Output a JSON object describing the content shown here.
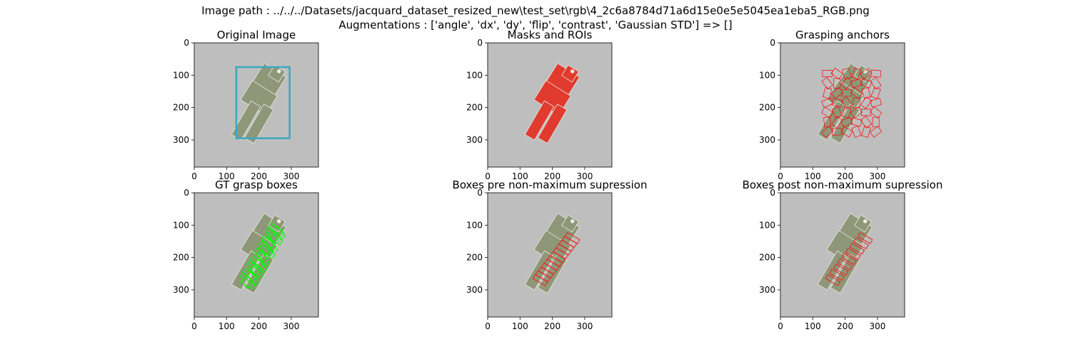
{
  "figure": {
    "line1": "Image path : ../../../Datasets/jacquard_dataset_resized_new\\test_set\\rgb\\4_2c6a8784d71a6d15e0e5e5045ea1eba5_RGB.png",
    "line2": "Augmentations : ['angle', 'dx', 'dy', 'flip', 'contrast', 'Gaussian STD'] => []"
  },
  "axes_ticks": {
    "y": [
      "0",
      "100",
      "200",
      "300"
    ],
    "x": [
      "0",
      "100",
      "200",
      "300"
    ],
    "extent": [
      0,
      384
    ]
  },
  "colors": {
    "background": "#bebebe",
    "object_body": "#8f9779",
    "roi_box": "#3aa8bf",
    "mask": "#e03b2e",
    "anchor": "#ff0000",
    "gt_box": "#00ff00",
    "pred_box": "#e8231f"
  },
  "panels": [
    {
      "id": "original",
      "title": "Original Image",
      "icon": "roi-box"
    },
    {
      "id": "masks",
      "title": "Masks and ROIs",
      "icon": "mask-overlay"
    },
    {
      "id": "anchors",
      "title": "Grasping anchors",
      "icon": "anchor-grid"
    },
    {
      "id": "gt",
      "title": "GT grasp boxes",
      "icon": "gt-boxes"
    },
    {
      "id": "pre_nms",
      "title": "Boxes pre non-maximum supression",
      "icon": "pre-nms-boxes"
    },
    {
      "id": "post_nms",
      "title": "Boxes post non-maximum supression",
      "icon": "post-nms-boxes"
    }
  ]
}
